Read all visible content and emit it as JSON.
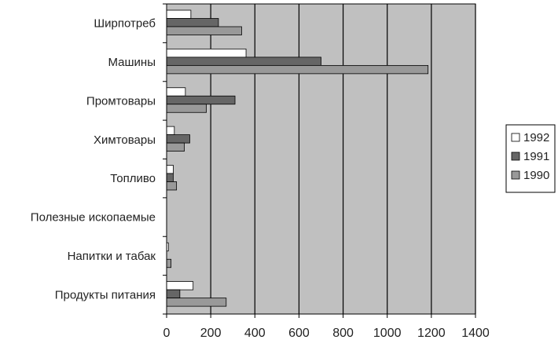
{
  "chart_data": {
    "type": "bar",
    "orientation": "horizontal",
    "title": "",
    "xlabel": "",
    "ylabel": "",
    "categories": [
      "Ширпотреб",
      "Машины",
      "Промтовары",
      "Химтовары",
      "Топливо",
      "Полезные ископаемые",
      "Напитки и табак",
      "Продукты питания"
    ],
    "series": [
      {
        "name": "1992",
        "color": "#ffffff",
        "values": [
          110,
          360,
          85,
          35,
          30,
          0,
          8,
          120
        ]
      },
      {
        "name": "1991",
        "color": "#666666",
        "values": [
          235,
          700,
          310,
          105,
          30,
          0,
          0,
          60
        ]
      },
      {
        "name": "1990",
        "color": "#999999",
        "values": [
          340,
          1185,
          180,
          80,
          45,
          0,
          20,
          270
        ]
      }
    ],
    "xlim": [
      0,
      1400
    ],
    "xticks": [
      0,
      200,
      400,
      600,
      800,
      1000,
      1200,
      1400
    ],
    "xtick_labels": [
      "0",
      "200",
      "400",
      "600",
      "800",
      "1000",
      "1200",
      "1400"
    ],
    "grid": true,
    "plot_background": "#c0c0c0",
    "legend_position": "right"
  }
}
